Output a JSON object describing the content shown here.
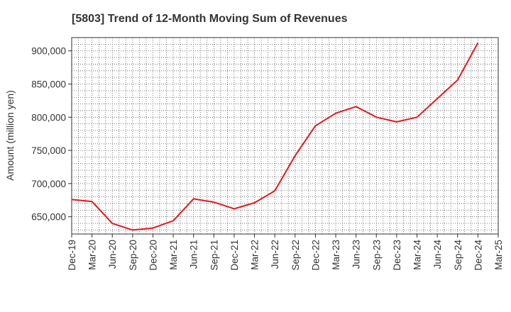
{
  "chart_data": {
    "type": "line",
    "title": "[5803]  Trend of 12-Month Moving Sum of Revenues",
    "ylabel": "Amount (million yen)",
    "xlabel": "",
    "x": [
      "Dec-19",
      "Mar-20",
      "Jun-20",
      "Sep-20",
      "Dec-20",
      "Mar-21",
      "Jun-21",
      "Sep-21",
      "Dec-21",
      "Mar-22",
      "Jun-22",
      "Sep-22",
      "Dec-22",
      "Mar-23",
      "Jun-23",
      "Sep-23",
      "Dec-23",
      "Mar-24",
      "Jun-24",
      "Sep-24",
      "Dec-24",
      "Mar-25"
    ],
    "series": [
      {
        "color": "#e31a1c",
        "values": [
          676000,
          673000,
          640000,
          630000,
          633000,
          644000,
          677000,
          672000,
          662000,
          671000,
          689000,
          742000,
          787000,
          806000,
          816000,
          800000,
          793000,
          800000,
          828000,
          856000,
          912000,
          null
        ]
      }
    ],
    "yticks": [
      650000,
      700000,
      750000,
      800000,
      850000,
      900000
    ],
    "ytick_labels": [
      "650,000",
      "700,000",
      "750,000",
      "800,000",
      "850,000",
      "900,000"
    ],
    "ylim": [
      624000,
      920000
    ],
    "grid": true,
    "legend": "none"
  }
}
